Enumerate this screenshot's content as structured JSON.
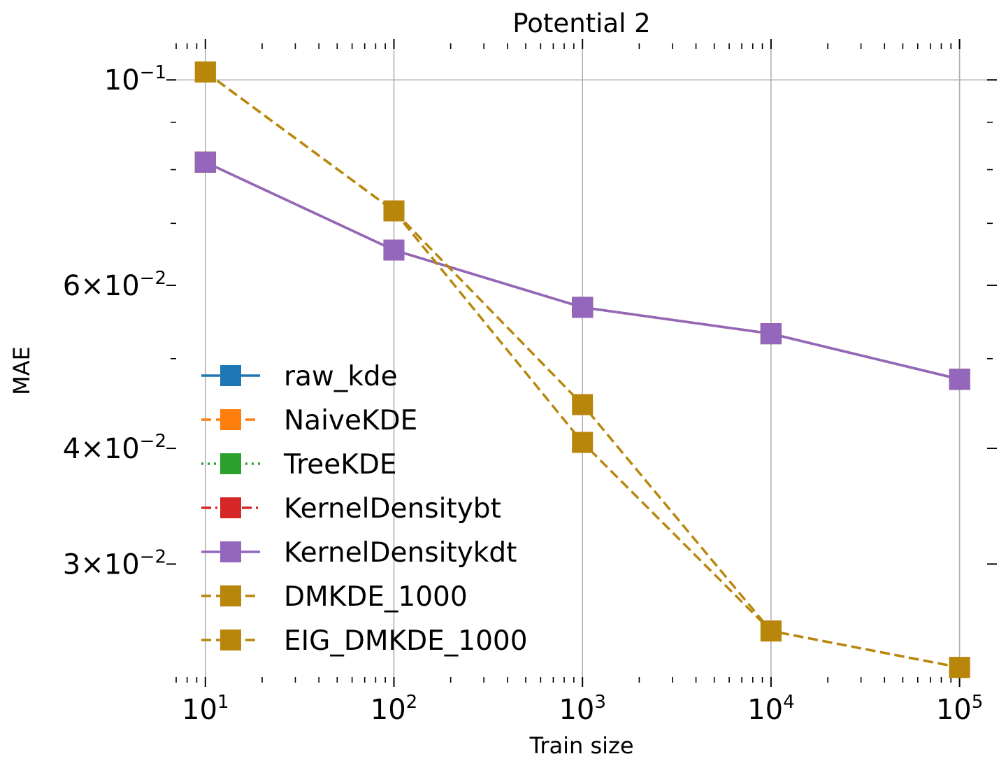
{
  "chart_data": {
    "type": "line",
    "title": "Potential 2",
    "xlabel": "Train size",
    "ylabel": "MAE",
    "xscale": "log",
    "yscale": "log",
    "xlim": [
      7,
      140000
    ],
    "ylim": [
      0.02265,
      0.108
    ],
    "grid": true,
    "legend_position": "lower-left",
    "x": [
      10,
      100,
      1000,
      10000,
      100000
    ],
    "x_ticks": [
      {
        "value": 10,
        "base": "10",
        "exp": "1"
      },
      {
        "value": 100,
        "base": "10",
        "exp": "2"
      },
      {
        "value": 1000,
        "base": "10",
        "exp": "3"
      },
      {
        "value": 10000,
        "base": "10",
        "exp": "4"
      },
      {
        "value": 100000,
        "base": "10",
        "exp": "5"
      }
    ],
    "y_ticks": [
      {
        "value": 0.1,
        "mant": "",
        "base": "10",
        "exp": "−1"
      },
      {
        "value": 0.06,
        "mant": "6×",
        "base": "10",
        "exp": "−2"
      },
      {
        "value": 0.04,
        "mant": "4×",
        "base": "10",
        "exp": "−2"
      },
      {
        "value": 0.03,
        "mant": "3×",
        "base": "10",
        "exp": "−2"
      }
    ],
    "series": [
      {
        "name": "raw_kde",
        "color": "#1f77b4",
        "style": "solid",
        "values": [
          0.0815,
          0.0655,
          0.0568,
          0.0532,
          0.0475
        ]
      },
      {
        "name": "NaiveKDE",
        "color": "#ff7f0e",
        "style": "dashed",
        "values": [
          0.0815,
          0.0655,
          0.0568,
          0.0532,
          0.0475
        ]
      },
      {
        "name": "TreeKDE",
        "color": "#2ca02c",
        "style": "dotted",
        "values": [
          0.0815,
          0.0655,
          0.0568,
          0.0532,
          0.0475
        ]
      },
      {
        "name": "KernelDensitybt",
        "color": "#d62728",
        "style": "dashdot",
        "values": [
          0.0815,
          0.0655,
          0.0568,
          0.0532,
          0.0475
        ]
      },
      {
        "name": "KernelDensitykdt",
        "color": "#9467bd",
        "style": "solid",
        "values": [
          0.0815,
          0.0655,
          0.0568,
          0.0532,
          0.0475
        ]
      },
      {
        "name": "DMKDE_1000",
        "color": "#b8860b",
        "style": "dashed",
        "values": [
          0.102,
          0.0722,
          0.0446,
          0.0254,
          0.0232
        ]
      },
      {
        "name": "EIG_DMKDE_1000",
        "color": "#b8860b",
        "style": "dashed",
        "values": [
          0.102,
          0.0722,
          0.0406,
          0.0254,
          0.0232
        ]
      }
    ]
  }
}
